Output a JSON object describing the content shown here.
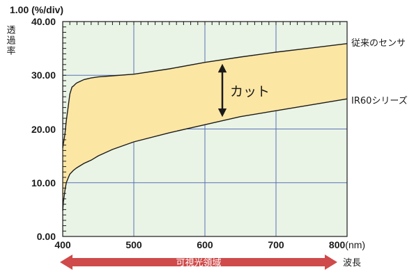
{
  "colors": {
    "plot_bg": "#e9f4e6",
    "grid": "#5a6fb3",
    "fill": "#fce6a4",
    "curve": "#1a1a1a",
    "arrow": "#1a1a1a",
    "band": "#cf4a4a"
  },
  "chart_data": {
    "type": "area",
    "title": "",
    "scale_label": "1.00 (%/div)",
    "ylabel": "透過率",
    "xlabel": "波長",
    "x_unit": "(nm)",
    "xlim": [
      400,
      800
    ],
    "ylim": [
      0,
      40
    ],
    "x_ticks": [
      "400",
      "500",
      "600",
      "700",
      "800"
    ],
    "y_ticks": [
      "0.00",
      "10.00",
      "20.00",
      "30.00",
      "40.00"
    ],
    "grid": true,
    "series": [
      {
        "name": "従来のセンサ",
        "x": [
          400,
          403,
          405,
          408,
          410,
          413,
          415,
          418,
          420,
          425,
          430,
          440,
          450,
          470,
          500,
          550,
          600,
          650,
          700,
          750,
          800
        ],
        "y": [
          16.5,
          19.0,
          21.5,
          24.5,
          26.5,
          27.8,
          28.0,
          28.4,
          28.6,
          28.9,
          29.2,
          29.5,
          29.7,
          29.9,
          30.2,
          31.2,
          32.4,
          33.4,
          34.3,
          35.1,
          35.9
        ]
      },
      {
        "name": "IR60シリーズ",
        "x": [
          400,
          401,
          403,
          405,
          408,
          410,
          415,
          420,
          425,
          430,
          440,
          450,
          470,
          500,
          550,
          600,
          650,
          700,
          750,
          800
        ],
        "y": [
          4.8,
          6.5,
          8.5,
          10.0,
          11.0,
          11.6,
          12.3,
          12.8,
          13.2,
          13.6,
          14.2,
          15.0,
          16.2,
          17.6,
          19.3,
          20.8,
          22.3,
          23.4,
          24.5,
          25.6
        ]
      }
    ],
    "annotations": {
      "cut_label": "カット",
      "visible_band_label": "可視光領域"
    }
  }
}
